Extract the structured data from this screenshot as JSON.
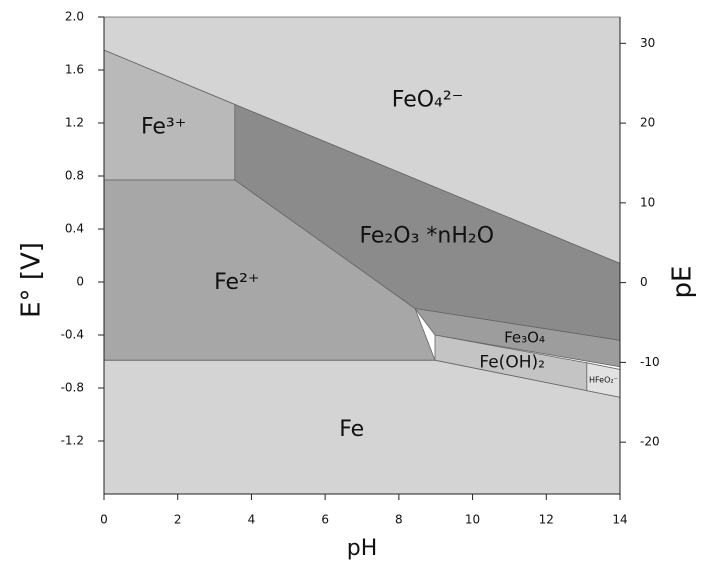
{
  "chart_data": {
    "type": "region",
    "x_label": "pH",
    "y_label": "E° [V]",
    "y2_label": "pE",
    "xlim": [
      0,
      14
    ],
    "xticks": [
      0,
      2,
      4,
      6,
      8,
      10,
      12,
      14
    ],
    "ylim": [
      -1.6,
      2.0
    ],
    "yticks": [
      {
        "value": 2,
        "label": "2.0"
      },
      1.6,
      1.2,
      0.8,
      0.4,
      0,
      -0.4,
      -0.8,
      -1.2
    ],
    "y2lim": [
      -26.5,
      33.3
    ],
    "y2ticks": [
      30,
      20,
      10,
      0,
      -10,
      -20
    ],
    "regions": [
      {
        "name": "FeO₄²⁻",
        "color": "#d4d4d4",
        "points": [
          [
            0,
            2.0
          ],
          [
            14,
            2.0
          ],
          [
            14,
            0.14
          ],
          [
            3.55,
            1.34
          ],
          [
            0,
            1.75
          ]
        ]
      },
      {
        "name": "Fe",
        "color": "#d4d4d4",
        "points": [
          [
            0,
            -0.59
          ],
          [
            8.98,
            -0.59
          ],
          [
            13.1,
            -0.82
          ],
          [
            14,
            -0.87
          ],
          [
            14,
            -1.6
          ],
          [
            0,
            -1.6
          ]
        ]
      },
      {
        "name": "Fe³⁺",
        "color": "#b9b9b9",
        "points": [
          [
            0,
            1.75
          ],
          [
            3.55,
            1.34
          ],
          [
            3.55,
            0.77
          ],
          [
            0,
            0.77
          ]
        ]
      },
      {
        "name": "Fe²⁺",
        "color": "#a7a7a7",
        "points": [
          [
            0,
            0.77
          ],
          [
            3.55,
            0.77
          ],
          [
            8.44,
            -0.2
          ],
          [
            8.98,
            -0.59
          ],
          [
            0,
            -0.59
          ]
        ]
      },
      {
        "name": "Fe₂O₃ *nH₂O",
        "color": "#8b8b8b",
        "points": [
          [
            3.55,
            1.34
          ],
          [
            14,
            0.14
          ],
          [
            14,
            -0.44
          ],
          [
            8.44,
            -0.2
          ],
          [
            3.55,
            0.77
          ]
        ]
      },
      {
        "name": "Fe₃O₄",
        "color": "#9d9d9d",
        "points": [
          [
            8.44,
            -0.2
          ],
          [
            14,
            -0.44
          ],
          [
            14,
            -0.64
          ],
          [
            8.98,
            -0.4
          ]
        ]
      },
      {
        "name": "Fe(OH)₂",
        "color": "#c4c4c4",
        "points": [
          [
            8.98,
            -0.4
          ],
          [
            13.1,
            -0.61
          ],
          [
            13.1,
            -0.82
          ],
          [
            8.98,
            -0.59
          ]
        ]
      },
      {
        "name": "HFeO₂⁻",
        "color": "#e2e2e2",
        "points": [
          [
            13.1,
            -0.61
          ],
          [
            14,
            -0.66
          ],
          [
            14,
            -0.87
          ],
          [
            13.1,
            -0.82
          ]
        ]
      }
    ]
  }
}
